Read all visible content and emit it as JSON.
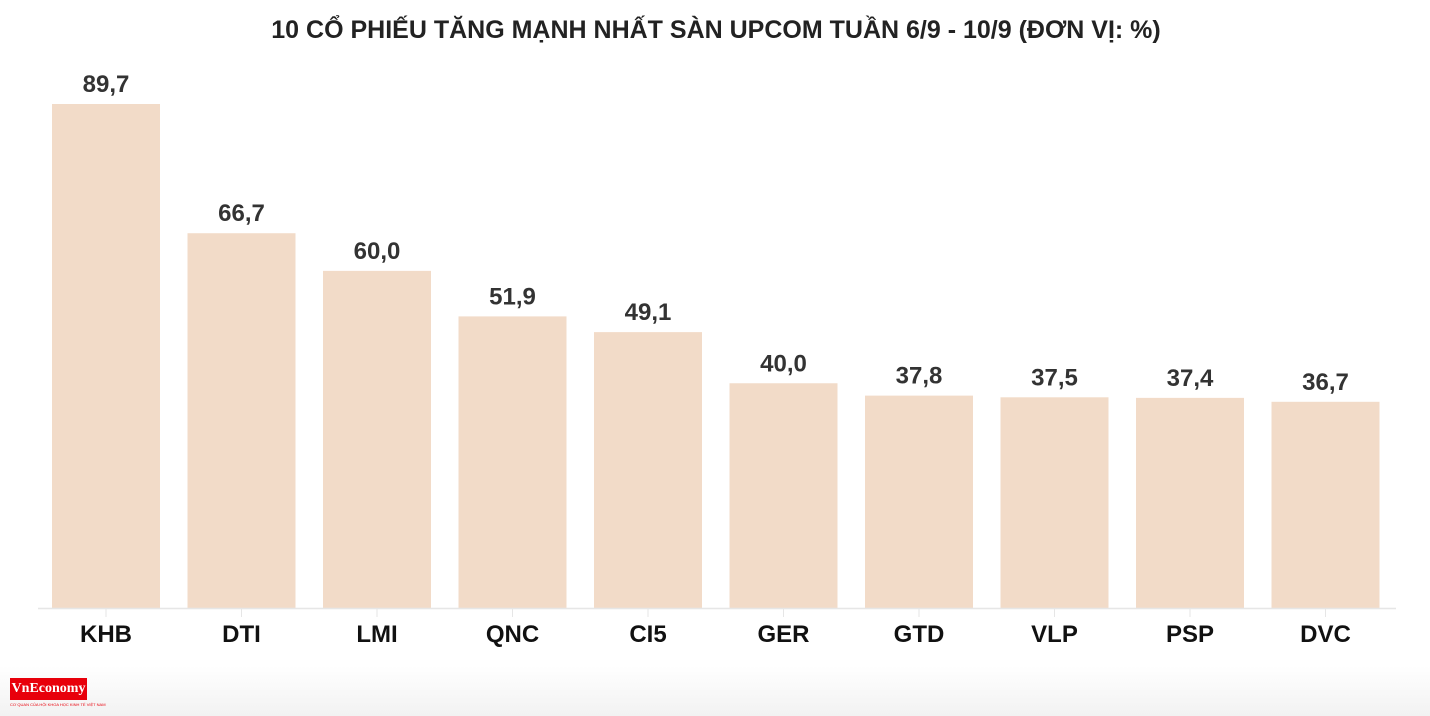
{
  "chart_data": {
    "type": "bar",
    "title": "10 CỔ PHIẾU TĂNG MẠNH NHẤT SÀN UPCOM TUẦN 6/9 - 10/9 (ĐƠN VỊ: %)",
    "categories": [
      "KHB",
      "DTI",
      "LMI",
      "QNC",
      "CI5",
      "GER",
      "GTD",
      "VLP",
      "PSP",
      "DVC"
    ],
    "values": [
      89.7,
      66.7,
      60.0,
      51.9,
      49.1,
      40.0,
      37.8,
      37.5,
      37.4,
      36.7
    ],
    "value_labels": [
      "89,7",
      "66,7",
      "60,0",
      "51,9",
      "49,1",
      "40,0",
      "37,8",
      "37,5",
      "37,4",
      "36,7"
    ],
    "xlabel": "",
    "ylabel": "",
    "ylim": [
      0,
      89.7
    ],
    "grid": false,
    "bar_color": "#f2dbc8"
  },
  "logo": {
    "text": "VnEconomy",
    "subtitle": "CƠ QUAN CỦA HỘI KHOA HỌC KINH TẾ VIỆT NAM"
  }
}
